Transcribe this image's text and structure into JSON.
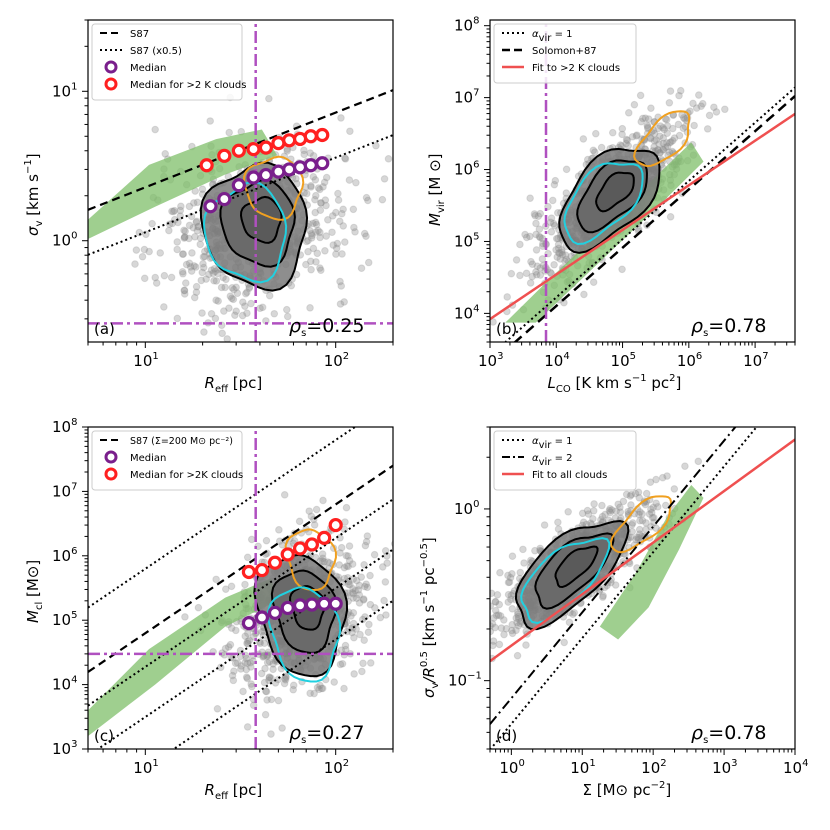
{
  "colors": {
    "median": "#7a1f8c",
    "median_k": "#ff2020",
    "gray": "#8c8c8c",
    "green": "#7fbf6a",
    "orange": "#f0a020",
    "cyan": "#20d0e0",
    "fit": "#ef5050",
    "purple_line": "#b050c0"
  },
  "chart_data": [
    {
      "id": "a",
      "type": "scatter",
      "panel_label": "(a)",
      "rho": "0.25",
      "xlabel": "R",
      "xlabel_sub": "eff",
      "xlabel_unit": "[pc]",
      "ylabel": "σ",
      "ylabel_sub": "v",
      "ylabel_unit": "[km s",
      "xlim": [
        5,
        200
      ],
      "ylim": [
        0.21,
        30
      ],
      "xticks": [
        {
          "v": 10,
          "base": "10",
          "exp": "1"
        },
        {
          "v": 100,
          "base": "10",
          "exp": "2"
        }
      ],
      "yticks": [
        {
          "v": 1,
          "base": "10",
          "exp": "0"
        },
        {
          "v": 10,
          "base": "10",
          "exp": "1"
        }
      ],
      "legend": [
        "S87",
        "S87 (x0.5)",
        "Median",
        "Median for >2 K clouds"
      ],
      "vline": 38,
      "hline": 0.28,
      "median": {
        "x": [
          22,
          26,
          31,
          37,
          43,
          50,
          57,
          65,
          74,
          85
        ],
        "y": [
          1.7,
          1.9,
          2.35,
          2.65,
          2.75,
          2.9,
          3.0,
          3.1,
          3.2,
          3.3
        ]
      },
      "median_k": {
        "x": [
          21,
          26,
          31,
          37,
          43,
          50,
          57,
          65,
          74,
          85
        ],
        "y": [
          3.2,
          3.7,
          4.0,
          4.1,
          4.2,
          4.5,
          4.7,
          4.8,
          5.0,
          5.1
        ]
      }
    },
    {
      "id": "b",
      "type": "scatter",
      "panel_label": "(b)",
      "rho": "0.78",
      "xlabel": "L",
      "xlabel_sub": "CO",
      "xlabel_unit": "[K km s",
      "ylabel": "M",
      "ylabel_sub": "vir",
      "ylabel_unit": "[M ⊙]",
      "xlim": [
        1000,
        40000000
      ],
      "ylim": [
        4000,
        120000000
      ],
      "xticks": [
        {
          "v": 1000,
          "base": "10",
          "exp": "3"
        },
        {
          "v": 10000,
          "base": "10",
          "exp": "4"
        },
        {
          "v": 100000,
          "base": "10",
          "exp": "5"
        },
        {
          "v": 1000000,
          "base": "10",
          "exp": "6"
        },
        {
          "v": 10000000,
          "base": "10",
          "exp": "7"
        }
      ],
      "yticks": [
        {
          "v": 10000,
          "base": "10",
          "exp": "4"
        },
        {
          "v": 100000,
          "base": "10",
          "exp": "5"
        },
        {
          "v": 1000000,
          "base": "10",
          "exp": "6"
        },
        {
          "v": 10000000,
          "base": "10",
          "exp": "7"
        },
        {
          "v": 100000000,
          "base": "10",
          "exp": "8"
        }
      ],
      "legend": [
        "α",
        "vir",
        "= 1",
        "Solomon+87",
        "Fit to >2 K clouds"
      ],
      "vline": 7000
    },
    {
      "id": "c",
      "type": "scatter",
      "panel_label": "(c)",
      "rho": "0.27",
      "xlabel": "R",
      "xlabel_sub": "eff",
      "xlabel_unit": "[pc]",
      "ylabel": "M",
      "ylabel_sub": "cl",
      "ylabel_unit": "[M⊙]",
      "xlim": [
        5,
        200
      ],
      "ylim": [
        1000,
        100000000
      ],
      "xticks": [
        {
          "v": 10,
          "base": "10",
          "exp": "1"
        },
        {
          "v": 100,
          "base": "10",
          "exp": "2"
        }
      ],
      "yticks": [
        {
          "v": 1000,
          "base": "10",
          "exp": "3"
        },
        {
          "v": 10000,
          "base": "10",
          "exp": "4"
        },
        {
          "v": 100000,
          "base": "10",
          "exp": "5"
        },
        {
          "v": 1000000,
          "base": "10",
          "exp": "6"
        },
        {
          "v": 10000000,
          "base": "10",
          "exp": "7"
        },
        {
          "v": 100000000,
          "base": "10",
          "exp": "8"
        }
      ],
      "legend": [
        "S87 (Σ=200 M⊙ pc⁻²)",
        "Median",
        "Median for >2K clouds"
      ],
      "vline": 38,
      "hline": 30000,
      "median": {
        "x": [
          35,
          41,
          48,
          56,
          65,
          75,
          87,
          100
        ],
        "y": [
          90000,
          110000,
          130000,
          155000,
          170000,
          175000,
          180000,
          180000
        ]
      },
      "median_k": {
        "x": [
          35,
          41,
          48,
          56,
          65,
          75,
          87,
          100
        ],
        "y": [
          560000,
          600000,
          780000,
          1050000,
          1300000,
          1500000,
          1900000,
          3000000
        ]
      }
    },
    {
      "id": "d",
      "type": "scatter",
      "panel_label": "(d)",
      "rho": "0.78",
      "xlabel": "Σ",
      "xlabel_sub": "",
      "xlabel_unit": "[M⊙ pc",
      "ylabel": "σ",
      "ylabel_sub": "v",
      "ylabel_unit": "/R",
      "xlim": [
        0.5,
        10000
      ],
      "ylim": [
        0.04,
        3.0
      ],
      "xticks": [
        {
          "v": 1,
          "base": "10",
          "exp": "0"
        },
        {
          "v": 10,
          "base": "10",
          "exp": "1"
        },
        {
          "v": 100,
          "base": "10",
          "exp": "2"
        },
        {
          "v": 1000,
          "base": "10",
          "exp": "3"
        },
        {
          "v": 10000,
          "base": "10",
          "exp": "4"
        }
      ],
      "yticks": [
        {
          "v": 0.1,
          "base": "10",
          "exp": "−1"
        },
        {
          "v": 1,
          "base": "10",
          "exp": "0"
        }
      ],
      "legend": [
        "α",
        "vir",
        "= 1",
        "= 2",
        "Fit to all clouds"
      ]
    }
  ],
  "texts": {
    "rho_prefix": "ρ",
    "rho_sub": "s",
    "eq": "=",
    "unit_km_s": "[km s",
    "unit_pc2": "pc",
    "neg1": "−1",
    "neg2": "−2",
    "sup2": "2",
    "neg05": "−0.5",
    "sup05": "0.5",
    "close": "]",
    "y_a_tail": ")",
    "y_d_unit": "[km s",
    "y_d_unit2": "pc"
  }
}
